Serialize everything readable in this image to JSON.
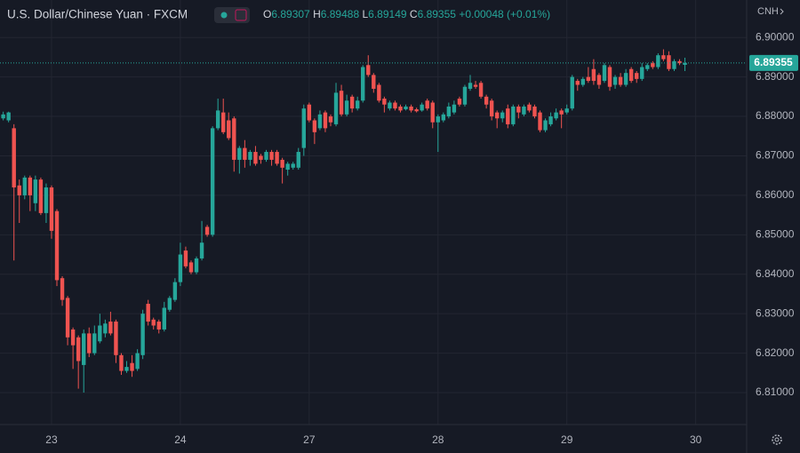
{
  "header": {
    "title": "U.S. Dollar/Chinese Yuan · FXCM",
    "ohlc": [
      {
        "label": "O",
        "value": 6.89307
      },
      {
        "label": "H",
        "value": 6.89488
      },
      {
        "label": "L",
        "value": 6.89149
      },
      {
        "label": "C",
        "value": 6.89355
      }
    ],
    "change": {
      "value": 0.00048,
      "label": "+0.00048"
    },
    "change_pct": {
      "value": 0.01,
      "label": "(+0.01%)"
    },
    "currency": "CNH"
  },
  "chart_data": {
    "type": "candlestick",
    "up_color": "#26a69a",
    "down_color": "#ef5350",
    "grid": true,
    "last_price": 6.89355,
    "xlim": [
      -9.6,
      129.5
    ],
    "xticks": [
      {
        "value": 0,
        "label": "23"
      },
      {
        "value": 24,
        "label": "24"
      },
      {
        "value": 48,
        "label": "27"
      },
      {
        "value": 72,
        "label": "28"
      },
      {
        "value": 96,
        "label": "29"
      },
      {
        "value": 120,
        "label": "30"
      }
    ],
    "ylim": [
      6.8019,
      6.9095
    ],
    "yticks": [
      {
        "value": 6.81,
        "label": "6.81000"
      },
      {
        "value": 6.82,
        "label": "6.82000"
      },
      {
        "value": 6.83,
        "label": "6.83000"
      },
      {
        "value": 6.84,
        "label": "6.84000"
      },
      {
        "value": 6.85,
        "label": "6.85000"
      },
      {
        "value": 6.86,
        "label": "6.86000"
      },
      {
        "value": 6.87,
        "label": "6.87000"
      },
      {
        "value": 6.88,
        "label": "6.88000"
      },
      {
        "value": 6.89,
        "label": "6.89000"
      },
      {
        "value": 6.9,
        "label": "6.90000"
      }
    ],
    "x": [
      -9,
      -8,
      -7,
      -6,
      -5,
      -4,
      -3,
      -2,
      -1,
      0,
      1,
      2,
      3,
      4,
      5,
      6,
      7,
      8,
      9,
      10,
      11,
      12,
      13,
      14,
      15,
      16,
      17,
      18,
      19,
      20,
      21,
      22,
      23,
      24,
      25,
      26,
      27,
      28,
      29,
      30,
      31,
      32,
      33,
      34,
      35,
      36,
      37,
      38,
      39,
      40,
      41,
      42,
      43,
      44,
      45,
      46,
      47,
      48,
      49,
      50,
      51,
      52,
      53,
      54,
      55,
      56,
      57,
      58,
      59,
      60,
      61,
      62,
      63,
      64,
      65,
      66,
      67,
      68,
      69,
      70,
      71,
      72,
      73,
      74,
      75,
      76,
      77,
      78,
      79,
      80,
      81,
      82,
      83,
      84,
      85,
      86,
      87,
      88,
      89,
      90,
      91,
      92,
      93,
      94,
      95,
      96,
      97,
      98,
      99,
      100,
      101,
      102,
      103,
      104,
      105,
      106,
      107,
      108,
      109,
      110,
      111,
      112,
      113,
      114,
      115,
      116,
      117,
      118
    ],
    "open": [
      6.8795,
      6.879,
      6.877,
      6.8625,
      6.86,
      6.8645,
      6.858,
      6.864,
      6.8555,
      6.862,
      6.856,
      6.839,
      6.834,
      6.826,
      6.824,
      6.817,
      6.825,
      6.82,
      6.823,
      6.825,
      6.828,
      6.828,
      6.8195,
      6.8155,
      6.8175,
      6.816,
      6.8195,
      6.8325,
      6.8285,
      6.828,
      6.826,
      6.831,
      6.8335,
      6.838,
      6.846,
      6.843,
      6.8405,
      6.844,
      6.852,
      6.85,
      6.877,
      6.881,
      6.879,
      6.8795,
      6.869,
      6.872,
      6.869,
      6.871,
      6.87,
      6.869,
      6.871,
      6.871,
      6.869,
      6.8665,
      6.867,
      6.867,
      6.872,
      6.883,
      6.879,
      6.877,
      6.881,
      6.88,
      6.878,
      6.8865,
      6.8805,
      6.885,
      6.882,
      6.884,
      6.893,
      6.8905,
      6.888,
      6.8845,
      6.882,
      6.8835,
      6.8825,
      6.8818,
      6.8825,
      6.8818,
      6.8815,
      6.884,
      6.8835,
      6.8785,
      6.879,
      6.88,
      6.881,
      6.8845,
      6.883,
      6.887,
      6.888,
      6.8885,
      6.885,
      6.884,
      6.881,
      6.8795,
      6.882,
      6.878,
      6.8825,
      6.8805,
      6.883,
      6.8825,
      6.881,
      6.8765,
      6.878,
      6.8795,
      6.8815,
      6.881,
      6.882,
      6.889,
      6.888,
      6.89,
      6.892,
      6.8905,
      6.889,
      6.8925,
      6.888,
      6.89,
      6.888,
      6.892,
      6.891,
      6.8895,
      6.892,
      6.8935,
      6.8925,
      6.8955,
      6.8955,
      6.892,
      6.894,
      6.89307
    ],
    "high": [
      6.8812,
      6.8812,
      6.878,
      6.864,
      6.865,
      6.865,
      6.865,
      6.8645,
      6.863,
      6.8625,
      6.8565,
      6.8395,
      6.8345,
      6.8265,
      6.8245,
      6.826,
      6.8265,
      6.827,
      6.83,
      6.8285,
      6.8305,
      6.8285,
      6.82,
      6.818,
      6.8195,
      6.821,
      6.831,
      6.8335,
      6.829,
      6.8285,
      6.833,
      6.8345,
      6.839,
      6.848,
      6.847,
      6.8435,
      6.8445,
      6.8535,
      6.8525,
      6.8775,
      6.8845,
      6.8845,
      6.881,
      6.88,
      6.8725,
      6.874,
      6.8715,
      6.8725,
      6.8705,
      6.8715,
      6.8715,
      6.8715,
      6.8695,
      6.8685,
      6.8685,
      6.872,
      6.883,
      6.8835,
      6.8795,
      6.8815,
      6.8815,
      6.8805,
      6.8885,
      6.888,
      6.8855,
      6.8855,
      6.885,
      6.893,
      6.8955,
      6.891,
      6.8885,
      6.885,
      6.884,
      6.884,
      6.883,
      6.883,
      6.883,
      6.8822,
      6.8835,
      6.8845,
      6.884,
      6.8805,
      6.881,
      6.8835,
      6.884,
      6.885,
      6.888,
      6.8905,
      6.889,
      6.889,
      6.8855,
      6.8845,
      6.8815,
      6.8815,
      6.883,
      6.883,
      6.883,
      6.883,
      6.8835,
      6.883,
      6.8815,
      6.8795,
      6.881,
      6.882,
      6.882,
      6.883,
      6.8905,
      6.8895,
      6.89,
      6.8925,
      6.8945,
      6.891,
      6.8935,
      6.893,
      6.8905,
      6.891,
      6.892,
      6.8925,
      6.8915,
      6.8935,
      6.8935,
      6.894,
      6.896,
      6.897,
      6.8965,
      6.8945,
      6.8945,
      6.89488
    ],
    "low": [
      6.879,
      6.8785,
      6.8435,
      6.853,
      6.859,
      6.856,
      6.856,
      6.855,
      6.853,
      6.849,
      6.837,
      6.832,
      6.822,
      6.816,
      6.811,
      6.81,
      6.819,
      6.8195,
      6.8225,
      6.824,
      6.8245,
      6.8175,
      6.8145,
      6.815,
      6.814,
      6.8155,
      6.8185,
      6.827,
      6.826,
      6.825,
      6.8255,
      6.8305,
      6.833,
      6.837,
      6.8415,
      6.84,
      6.84,
      6.8435,
      6.8495,
      6.8495,
      6.8765,
      6.8755,
      6.874,
      6.866,
      6.8655,
      6.867,
      6.8675,
      6.8675,
      6.868,
      6.8685,
      6.8675,
      6.8675,
      6.863,
      6.865,
      6.8665,
      6.8665,
      6.87,
      6.8785,
      6.873,
      6.8765,
      6.876,
      6.8775,
      6.8775,
      6.88,
      6.88,
      6.881,
      6.8815,
      6.8835,
      6.89,
      6.886,
      6.8835,
      6.881,
      6.8815,
      6.8815,
      6.881,
      6.8815,
      6.881,
      6.881,
      6.8812,
      6.8815,
      6.877,
      6.871,
      6.8785,
      6.8795,
      6.8805,
      6.8825,
      6.8825,
      6.8865,
      6.887,
      6.8845,
      6.882,
      6.879,
      6.877,
      6.8785,
      6.877,
      6.8775,
      6.8795,
      6.88,
      6.881,
      6.8795,
      6.876,
      6.876,
      6.8775,
      6.879,
      6.877,
      6.8805,
      6.8815,
      6.8865,
      6.8875,
      6.8885,
      6.888,
      6.887,
      6.8885,
      6.8865,
      6.887,
      6.8875,
      6.8875,
      6.8885,
      6.8885,
      6.889,
      6.8915,
      6.892,
      6.892,
      6.894,
      6.8915,
      6.8915,
      6.893,
      6.89149
    ],
    "close": [
      6.8805,
      6.881,
      6.862,
      6.86,
      6.8645,
      6.86,
      6.864,
      6.8555,
      6.862,
      6.851,
      6.8385,
      6.8335,
      6.824,
      6.822,
      6.818,
      6.825,
      6.82,
      6.825,
      6.827,
      6.8275,
      6.825,
      6.8195,
      6.8155,
      6.8165,
      6.8155,
      6.82,
      6.83,
      6.828,
      6.827,
      6.826,
      6.8315,
      6.834,
      6.838,
      6.845,
      6.842,
      6.8405,
      6.844,
      6.848,
      6.85,
      6.877,
      6.8815,
      6.876,
      6.8745,
      6.869,
      6.872,
      6.869,
      6.871,
      6.868,
      6.869,
      6.871,
      6.869,
      6.868,
      6.867,
      6.868,
      6.868,
      6.871,
      6.882,
      6.879,
      6.876,
      6.8805,
      6.877,
      6.8785,
      6.886,
      6.8805,
      6.884,
      6.882,
      6.884,
      6.8925,
      6.8905,
      6.887,
      6.884,
      6.883,
      6.8835,
      6.882,
      6.8815,
      6.8825,
      6.8815,
      6.8813,
      6.883,
      6.882,
      6.8785,
      6.88,
      6.8805,
      6.8825,
      6.883,
      6.883,
      6.8875,
      6.8885,
      6.8875,
      6.885,
      6.883,
      6.88,
      6.8795,
      6.881,
      6.878,
      6.8825,
      6.881,
      6.8825,
      6.8815,
      6.88,
      6.8765,
      6.879,
      6.88,
      6.881,
      6.8805,
      6.882,
      6.89,
      6.888,
      6.8895,
      6.889,
      6.889,
      6.888,
      6.893,
      6.8875,
      6.89,
      6.888,
      6.891,
      6.889,
      6.8895,
      6.8925,
      6.893,
      6.8925,
      6.8955,
      6.8945,
      6.892,
      6.894,
      6.8935,
      6.89355
    ]
  }
}
